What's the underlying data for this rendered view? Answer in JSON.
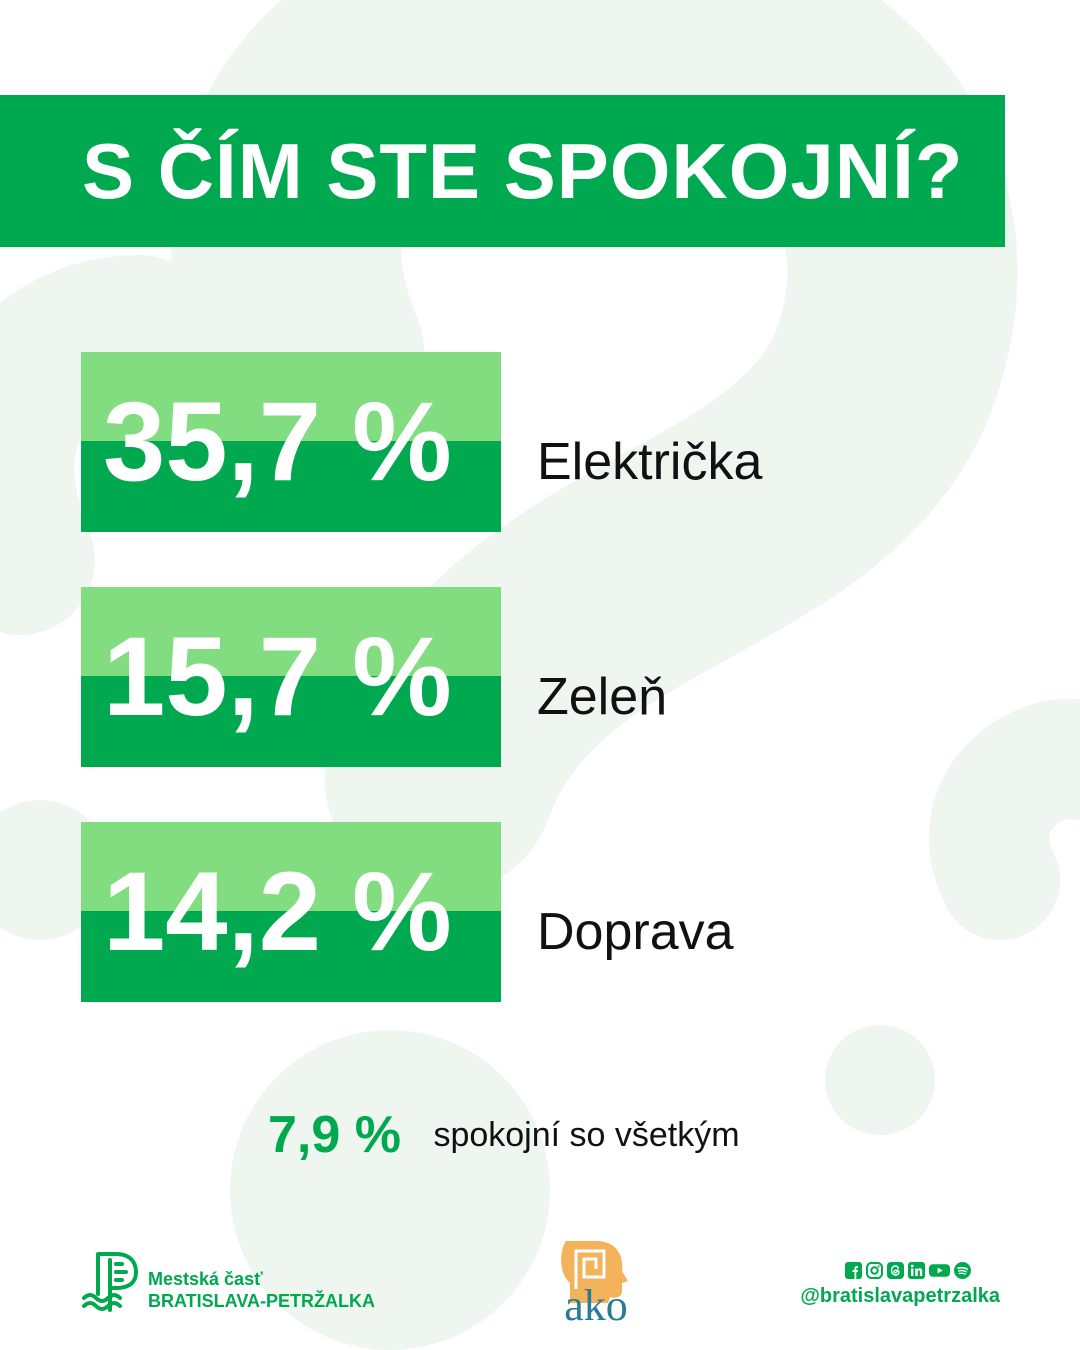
{
  "title": "S ČÍM STE SPOKOJNÍ?",
  "stats": [
    {
      "value": "35,7 %",
      "label": "Električka"
    },
    {
      "value": "15,7 %",
      "label": "Zeleň"
    },
    {
      "value": "14,2 %",
      "label": "Doprava"
    }
  ],
  "summary": {
    "value": "7,9 %",
    "label": "spokojní so všetkým"
  },
  "footer": {
    "logo_line1": "Mestská časť",
    "logo_line2": "BRATISLAVA-PETRŽALKA",
    "ako_text": "ako",
    "social_icons": [
      "facebook-icon",
      "instagram-icon",
      "threads-icon",
      "linkedin-icon",
      "youtube-icon",
      "spotify-icon"
    ],
    "handle": "@bratislavapetrzalka"
  },
  "colors": {
    "accent": "#00a84f",
    "accent_light": "#82dc80",
    "background_mark": "#eef6ef",
    "ako_blue": "#2a7c96",
    "ako_gold": "#f3b35a"
  }
}
